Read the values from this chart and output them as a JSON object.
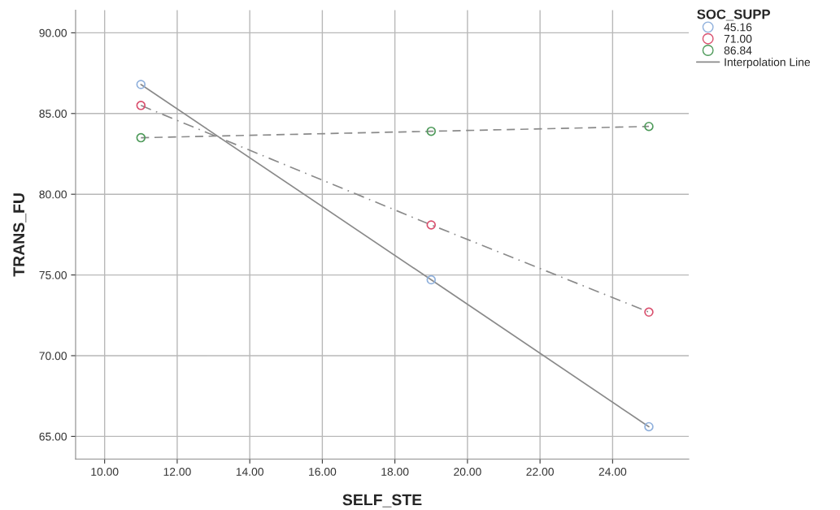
{
  "chart_data": {
    "type": "line",
    "xlabel": "SELF_STE",
    "ylabel": "TRANS_FU",
    "legend_title": "SOC_SUPP",
    "x": [
      11,
      19,
      25
    ],
    "series": [
      {
        "name": "45.16",
        "color": "#8fb0dc",
        "values": [
          86.8,
          74.7,
          65.6
        ],
        "line_style": "solid"
      },
      {
        "name": "71.00",
        "color": "#d9506e",
        "values": [
          85.5,
          78.1,
          72.7
        ],
        "line_style": "dashdot"
      },
      {
        "name": "86.84",
        "color": "#4e9a5a",
        "values": [
          83.5,
          83.9,
          84.2
        ],
        "line_style": "dashed"
      }
    ],
    "annotations": [
      "Interpolation Line"
    ],
    "marker": "circle",
    "grid": true,
    "legend": "top right",
    "xlim": [
      9.2,
      26.1
    ],
    "xticks": [
      {
        "value": 10,
        "label": "10.00"
      },
      {
        "value": 12,
        "label": "12.00"
      },
      {
        "value": 14,
        "label": "14.00"
      },
      {
        "value": 16,
        "label": "16.00"
      },
      {
        "value": 18,
        "label": "18.00"
      },
      {
        "value": 20,
        "label": "20.00"
      },
      {
        "value": 22,
        "label": "22.00"
      },
      {
        "value": 24,
        "label": "24.00"
      }
    ],
    "ylim": [
      63.6,
      91.4
    ],
    "yticks": [
      {
        "value": 65,
        "label": "65.00"
      },
      {
        "value": 70,
        "label": "70.00"
      },
      {
        "value": 75,
        "label": "75.00"
      },
      {
        "value": 80,
        "label": "80.00"
      },
      {
        "value": 85,
        "label": "85.00"
      },
      {
        "value": 90,
        "label": "90.00"
      }
    ]
  }
}
